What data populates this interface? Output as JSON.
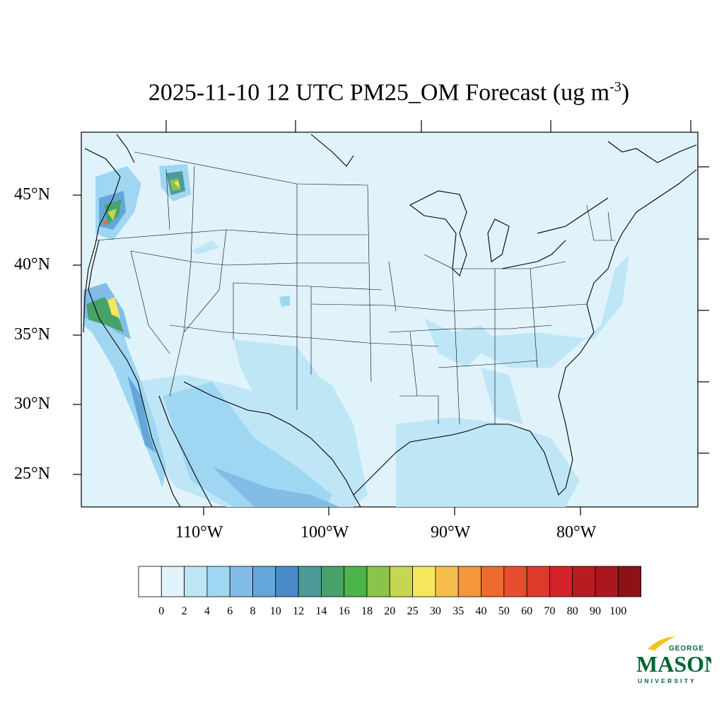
{
  "title": {
    "main": "2025-11-10 12 UTC PM25_OM Forecast (ug m",
    "sup": "-3",
    "close": ")"
  },
  "lat_labels": [
    "45°N",
    "40°N",
    "35°N",
    "30°N",
    "25°N"
  ],
  "lon_labels": [
    "110°W",
    "100°W",
    "90°W",
    "80°W"
  ],
  "colorbar": {
    "labels": [
      "0",
      "2",
      "4",
      "6",
      "8",
      "10",
      "12",
      "14",
      "16",
      "18",
      "20",
      "25",
      "30",
      "35",
      "40",
      "50",
      "60",
      "70",
      "80",
      "90",
      "100"
    ],
    "colors": [
      "#ffffff",
      "#e0f3fb",
      "#bfe6f7",
      "#9fd6f2",
      "#81bde6",
      "#65a6da",
      "#4a8ac8",
      "#4c9a9a",
      "#47a26a",
      "#4bb54a",
      "#8ac44c",
      "#c5d652",
      "#f6e65c",
      "#f6bd4c",
      "#f4963c",
      "#ee6a2e",
      "#e84e2e",
      "#de3a2a",
      "#d42228",
      "#b81c22",
      "#a8181e",
      "#8c1218"
    ]
  },
  "logo": {
    "top": "GEORGE",
    "main": "MASON",
    "bottom": "UNIVERSITY",
    "color": "#006633",
    "accent": "#f4c21f"
  }
}
